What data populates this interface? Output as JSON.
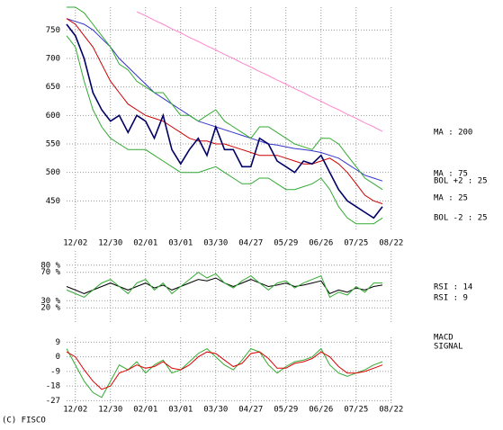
{
  "chart_data": [
    {
      "type": "line",
      "categories": [
        null,
        "12/02",
        null,
        null,
        null,
        "12/30",
        null,
        null,
        null,
        "02/01",
        null,
        null,
        null,
        "03/01",
        null,
        null,
        null,
        "03/30",
        null,
        null,
        null,
        "04/27",
        null,
        null,
        null,
        "05/29",
        null,
        null,
        null,
        "06/26",
        null,
        null,
        null,
        "07/25",
        null,
        null,
        null,
        "08/22"
      ],
      "price": {
        "color": "#000066",
        "values": [
          760,
          740,
          700,
          640,
          610,
          590,
          600,
          570,
          600,
          590,
          560,
          600,
          540,
          515,
          540,
          560,
          530,
          580,
          540,
          540,
          510,
          510,
          560,
          550,
          520,
          510,
          500,
          520,
          515,
          530,
          500,
          470,
          450,
          440,
          430,
          420,
          440,
          null
        ]
      },
      "series": [
        {
          "name": "MA : 200",
          "color": "#ff88cc",
          "values": [
            null,
            null,
            null,
            null,
            null,
            null,
            null,
            null,
            782,
            775,
            767,
            760,
            752,
            745,
            737,
            730,
            722,
            715,
            707,
            700,
            692,
            685,
            677,
            670,
            662,
            655,
            647,
            640,
            632,
            625,
            617,
            610,
            602,
            595,
            587,
            580,
            572,
            null
          ]
        },
        {
          "name": "MA : 75",
          "color": "#3333cc",
          "values": [
            770,
            765,
            760,
            750,
            735,
            720,
            700,
            685,
            670,
            655,
            640,
            630,
            620,
            610,
            600,
            590,
            585,
            580,
            575,
            570,
            565,
            560,
            555,
            550,
            548,
            545,
            542,
            540,
            538,
            535,
            530,
            525,
            515,
            505,
            495,
            490,
            485,
            null
          ]
        },
        {
          "name": "BOL +2 : 25",
          "color": "#33aa33",
          "values": [
            790,
            790,
            780,
            760,
            740,
            720,
            690,
            680,
            660,
            650,
            640,
            640,
            620,
            600,
            600,
            590,
            600,
            610,
            590,
            580,
            570,
            560,
            580,
            580,
            570,
            560,
            550,
            545,
            540,
            560,
            560,
            550,
            530,
            510,
            490,
            480,
            470,
            null
          ]
        },
        {
          "name": "MA : 25",
          "color": "#cc0000",
          "values": [
            770,
            760,
            740,
            720,
            690,
            660,
            640,
            620,
            610,
            600,
            595,
            590,
            580,
            570,
            560,
            555,
            555,
            550,
            550,
            545,
            540,
            535,
            530,
            530,
            530,
            525,
            520,
            515,
            515,
            520,
            525,
            515,
            500,
            480,
            460,
            450,
            445,
            null
          ]
        },
        {
          "name": "BOL -2 : 25",
          "color": "#33aa33",
          "values": [
            740,
            720,
            660,
            610,
            580,
            560,
            550,
            540,
            540,
            540,
            530,
            520,
            510,
            500,
            500,
            500,
            505,
            510,
            500,
            490,
            480,
            480,
            490,
            490,
            480,
            470,
            470,
            475,
            480,
            490,
            470,
            440,
            420,
            410,
            410,
            410,
            420,
            null
          ]
        }
      ],
      "ylim": [
        400,
        790
      ],
      "yticks": [
        450,
        500,
        550,
        600,
        650,
        700,
        750
      ],
      "grid": true
    },
    {
      "type": "line",
      "series": [
        {
          "name": "RSI : 14",
          "color": "#000000",
          "values": [
            50,
            45,
            40,
            45,
            50,
            55,
            50,
            45,
            50,
            55,
            48,
            52,
            45,
            50,
            55,
            60,
            58,
            62,
            55,
            50,
            55,
            60,
            55,
            50,
            52,
            55,
            50,
            52,
            55,
            58,
            40,
            45,
            42,
            48,
            45,
            50,
            52,
            null
          ]
        },
        {
          "name": "RSI : 9",
          "color": "#33aa33",
          "values": [
            45,
            40,
            35,
            45,
            55,
            60,
            50,
            40,
            55,
            60,
            45,
            55,
            40,
            50,
            60,
            70,
            62,
            68,
            55,
            48,
            58,
            65,
            55,
            45,
            55,
            58,
            48,
            55,
            60,
            65,
            35,
            42,
            38,
            50,
            42,
            55,
            55,
            null
          ]
        }
      ],
      "ylim": [
        0,
        100
      ],
      "yticks": [
        {
          "value": 20,
          "label": "20 %"
        },
        {
          "value": 30,
          "label": "30 %"
        },
        {
          "value": 70,
          "label": "70 %"
        },
        {
          "value": 80,
          "label": "80 %"
        }
      ],
      "grid": true
    },
    {
      "type": "line",
      "categories": [
        null,
        "12/02",
        null,
        null,
        null,
        "12/30",
        null,
        null,
        null,
        "02/01",
        null,
        null,
        null,
        "03/01",
        null,
        null,
        null,
        "03/30",
        null,
        null,
        null,
        "04/27",
        null,
        null,
        null,
        "05/29",
        null,
        null,
        null,
        "06/26",
        null,
        null,
        null,
        "07/25",
        null,
        null,
        null,
        "08/22"
      ],
      "series": [
        {
          "name": "MACD",
          "color": "#33aa33",
          "values": [
            5,
            -5,
            -15,
            -22,
            -25,
            -15,
            -5,
            -8,
            -3,
            -10,
            -5,
            -2,
            -10,
            -8,
            -3,
            2,
            5,
            0,
            -5,
            -8,
            -2,
            5,
            3,
            -5,
            -10,
            -6,
            -3,
            -2,
            0,
            5,
            -5,
            -10,
            -12,
            -10,
            -8,
            -5,
            -3,
            null
          ]
        },
        {
          "name": "SIGNAL",
          "color": "#dd0000",
          "values": [
            3,
            0,
            -8,
            -15,
            -20,
            -18,
            -10,
            -8,
            -5,
            -7,
            -6,
            -3,
            -7,
            -8,
            -5,
            0,
            3,
            2,
            -2,
            -6,
            -4,
            2,
            3,
            -1,
            -7,
            -7,
            -4,
            -3,
            -1,
            3,
            0,
            -6,
            -10,
            -10,
            -9,
            -7,
            -5,
            null
          ]
        }
      ],
      "ylim": [
        -29,
        12
      ],
      "yticks": [
        -27,
        -18,
        -9,
        0,
        9
      ],
      "grid": true
    }
  ],
  "footer": "(C) FISCO"
}
